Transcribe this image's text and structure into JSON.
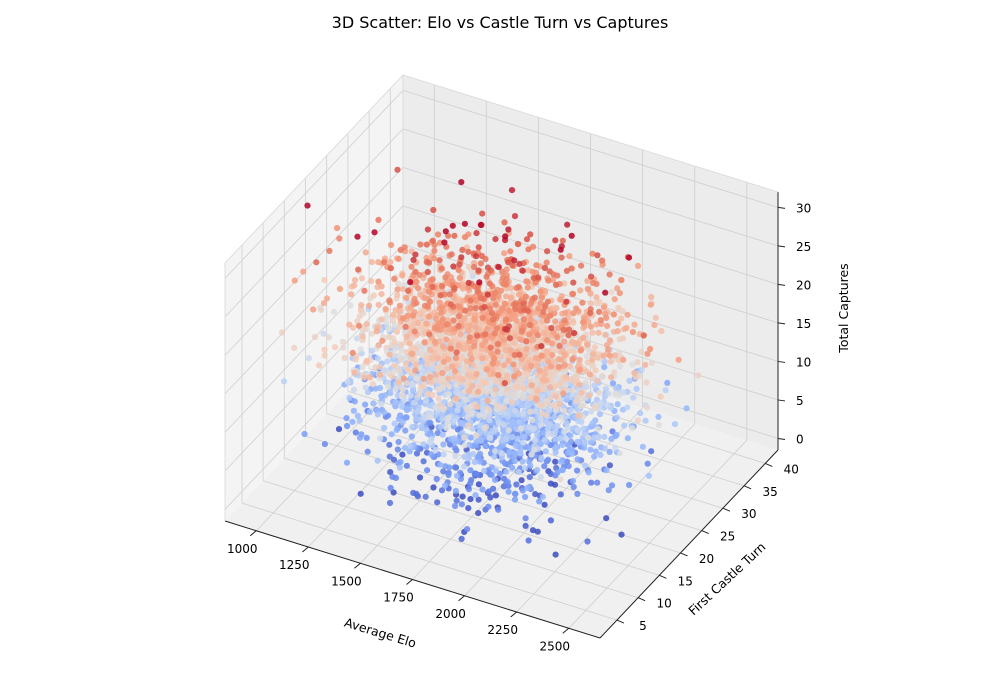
{
  "chart_data": {
    "type": "scatter",
    "title": "3D Scatter: Elo vs Castle Turn vs Captures",
    "xlabel": "Average Elo",
    "ylabel": "First Castle Turn",
    "zlabel": "Total Captures",
    "xlim": [
      850,
      2650
    ],
    "ylim": [
      1,
      43
    ],
    "zlim": [
      -1.5,
      32
    ],
    "xticks": [
      "1000",
      "1250",
      "1500",
      "1750",
      "2000",
      "2250",
      "2500"
    ],
    "yticks": [
      "5",
      "10",
      "15",
      "20",
      "25",
      "30",
      "35",
      "40"
    ],
    "zticks": [
      "0",
      "5",
      "10",
      "15",
      "20",
      "25",
      "30"
    ],
    "grid": true,
    "colormap": "coolwarm",
    "color_by": "Total Captures",
    "colors": {
      "low": "#3b4cc0",
      "mid": "#dddddd",
      "high": "#b40426",
      "pane": "#f2f2f2",
      "grid": "#cfcfcf"
    },
    "distribution": {
      "n_points": 4000,
      "x_mean": 1750,
      "x_sd": 280,
      "y_mean": 20,
      "y_sd": 5.5,
      "z_mean": 15,
      "z_sd": 5.5
    }
  }
}
